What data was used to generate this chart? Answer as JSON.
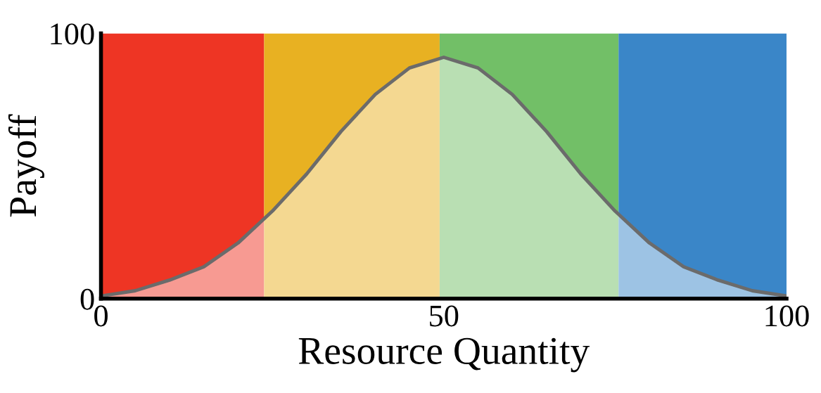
{
  "chart_data": {
    "type": "area",
    "xlabel": "Resource Quantity",
    "ylabel": "Payoff",
    "x": [
      0,
      5,
      10,
      15,
      20,
      25,
      30,
      35,
      40,
      45,
      50,
      55,
      60,
      65,
      70,
      75,
      80,
      85,
      90,
      95,
      100
    ],
    "series": [
      {
        "color": "#6b6b6b",
        "values": [
          1,
          3,
          7,
          12,
          21,
          33,
          47,
          63,
          77,
          87,
          91,
          87,
          77,
          63,
          47,
          33,
          21,
          12,
          7,
          3,
          1
        ]
      }
    ],
    "xlim": [
      0,
      100
    ],
    "ylim": [
      0,
      100
    ],
    "xticks": [
      0,
      50,
      100
    ],
    "yticks": [
      0,
      100
    ],
    "bands": [
      {
        "axis": "x",
        "from": 0,
        "to": 23.8,
        "color": "#ee3524"
      },
      {
        "axis": "x",
        "from": 23.8,
        "to": 49.4,
        "color": "#e8b122"
      },
      {
        "axis": "x",
        "from": 49.4,
        "to": 75.5,
        "color": "#72bf67"
      },
      {
        "axis": "x",
        "from": 75.5,
        "to": 100,
        "color": "#3a86c8"
      }
    ],
    "grid": false,
    "legend": false
  }
}
